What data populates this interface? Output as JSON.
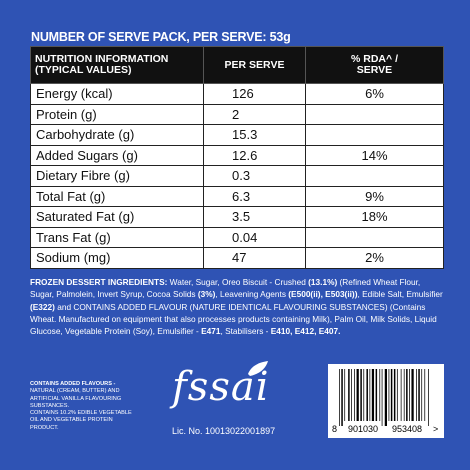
{
  "header": "NUMBER OF SERVE PACK, PER SERVE: 53g",
  "table": {
    "columns": [
      [
        "NUTRITION INFORMATION",
        "(TYPICAL VALUES)"
      ],
      [
        "PER SERVE"
      ],
      [
        "% RDA^ /",
        "SERVE"
      ]
    ],
    "rows": [
      {
        "name": "Energy (kcal)",
        "per_serve": "126",
        "rda": "6%"
      },
      {
        "name": "Protein (g)",
        "per_serve": "2"
      },
      {
        "name": "Carbohydrate (g)",
        "per_serve": "15.3"
      },
      {
        "name": "Added Sugars (g)",
        "per_serve": "12.6",
        "rda": "14%"
      },
      {
        "name": "Dietary Fibre (g)",
        "per_serve": "0.3"
      },
      {
        "name": "Total Fat (g)",
        "per_serve": "6.3",
        "rda": "9%"
      },
      {
        "name": "Saturated Fat (g)",
        "per_serve": "3.5",
        "rda": "18%"
      },
      {
        "name": "Trans Fat (g)",
        "per_serve": "0.04"
      },
      {
        "name": "Sodium (mg)",
        "per_serve": "47",
        "rda": "2%"
      }
    ]
  },
  "ingredients": [
    {
      "text": "FROZEN DESSERT INGREDIENTS:",
      "bold": true
    },
    {
      "text": " Water, Sugar, Oreo Biscuit - Crushed "
    },
    {
      "text": "(13.1%)",
      "bold": true
    },
    {
      "text": " (Refined Wheat Flour, Sugar, Palmolein, Invert Syrup, Cocoa Solids "
    },
    {
      "text": "(3%)",
      "bold": true
    },
    {
      "text": ", Leavening Agents "
    },
    {
      "text": "(E500(ii), E503(ii))",
      "bold": true
    },
    {
      "text": ", Edible Salt, Emulsifier "
    },
    {
      "text": "(E322)",
      "bold": true
    },
    {
      "text": " and CONTAINS ADDED FLAVOUR (NATURE IDENTICAL FLAVOURING SUBSTANCES) (Contains Wheat. Manufactured on equipment that also processes products containing Milk), Palm Oil, Milk Solids, Liquid Glucose, Vegetable Protein (Soy), Emulsifier - "
    },
    {
      "text": "E471",
      "bold": true
    },
    {
      "text": ", Stabilisers - "
    },
    {
      "text": "E410, E412, E407.",
      "bold": true
    }
  ],
  "flavours": {
    "title": "CONTAINS ADDED FLAVOURS -",
    "lines": [
      "NATURAL (CREAM, BUTTER) AND ARTIFICIAL VANILLA FLAVOURING SUBSTANCES.",
      "CONTAINS 10.2% EDIBLE VEGETABLE OIL AND VEGETABLE PROTEIN PRODUCT."
    ]
  },
  "fssai": {
    "logo": "fssai",
    "license": "Lic. No. 10013022001897"
  },
  "barcode": {
    "digits": [
      "8",
      "901030",
      "953408",
      ">"
    ]
  }
}
